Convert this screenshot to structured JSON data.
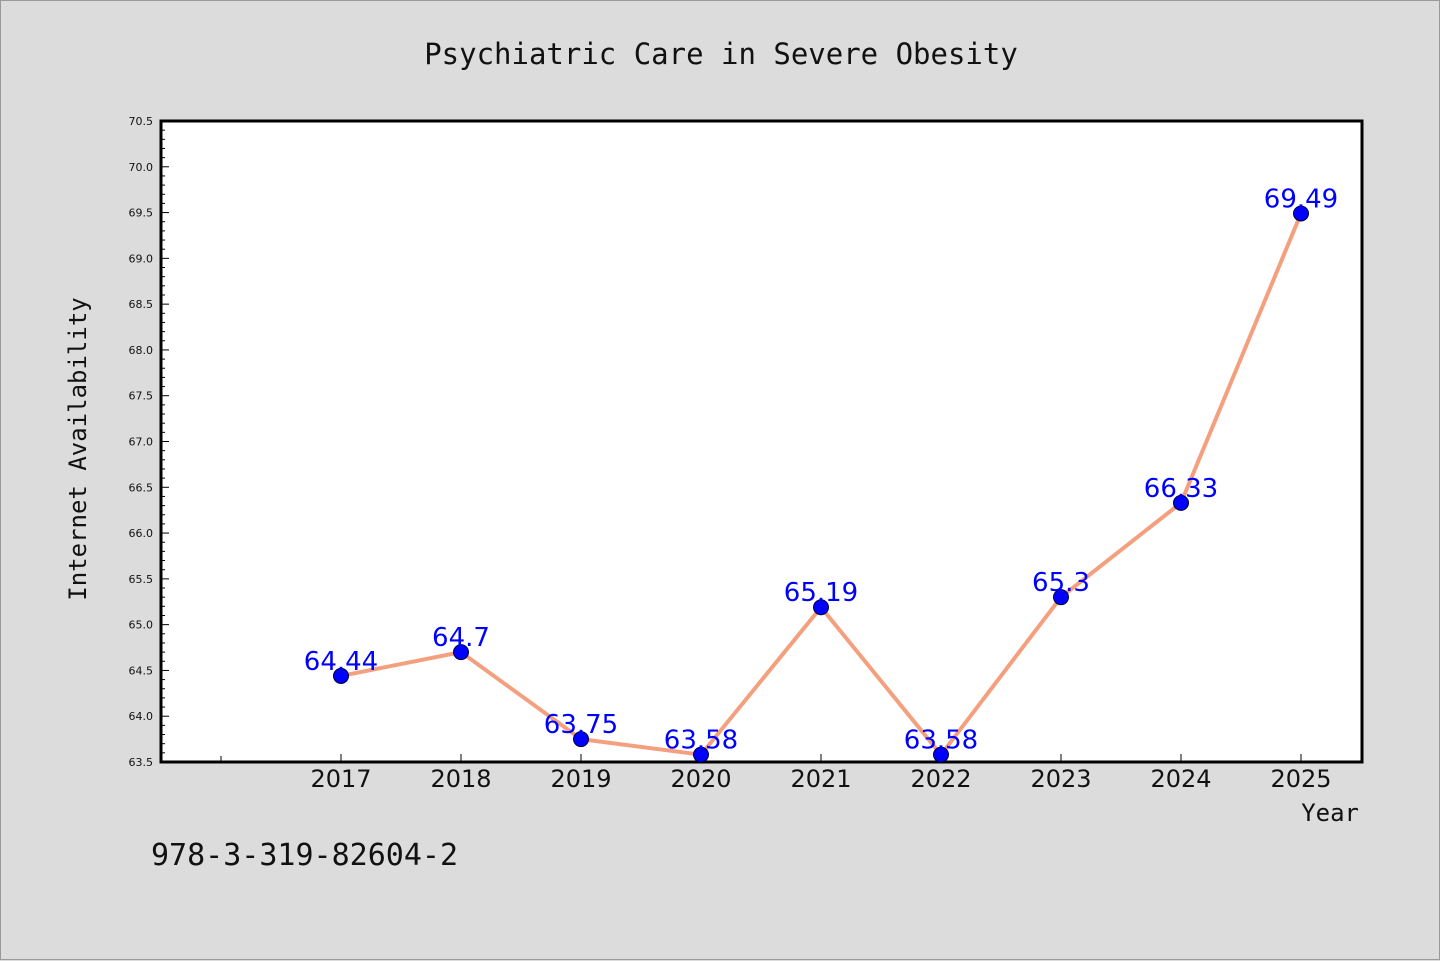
{
  "colors": {
    "background": "#dcdcdc",
    "plot_background": "#ffffff",
    "line": "#f4a07e",
    "marker": "#0000ff",
    "data_label": "#0000ff",
    "axis": "#000000"
  },
  "footer": {
    "text": "978-3-319-82604-2"
  },
  "chart_data": {
    "type": "line",
    "title": "Psychiatric Care in Severe Obesity",
    "xlabel": "Year",
    "ylabel": "Internet Availability",
    "x": [
      "2017",
      "2018",
      "2019",
      "2020",
      "2021",
      "2022",
      "2023",
      "2024",
      "2025"
    ],
    "series": [
      {
        "values": [
          64.44,
          64.7,
          63.75,
          63.58,
          65.19,
          63.58,
          65.3,
          66.33,
          69.49
        ],
        "labels": [
          "64.44",
          "64.7",
          "63.75",
          "63.58",
          "65.19",
          "63.58",
          "65.3",
          "66.33",
          "69.49"
        ]
      }
    ],
    "ylim": [
      63.5,
      70.5
    ],
    "yticks": [
      "63.5",
      "64.0",
      "64.5",
      "65.0",
      "65.5",
      "66.0",
      "66.5",
      "67.0",
      "67.5",
      "68.0",
      "68.5",
      "69.0",
      "69.5",
      "70.0",
      "70.5"
    ],
    "grid": false,
    "legend": "none",
    "markers": "filled circles",
    "data_labels": true
  }
}
